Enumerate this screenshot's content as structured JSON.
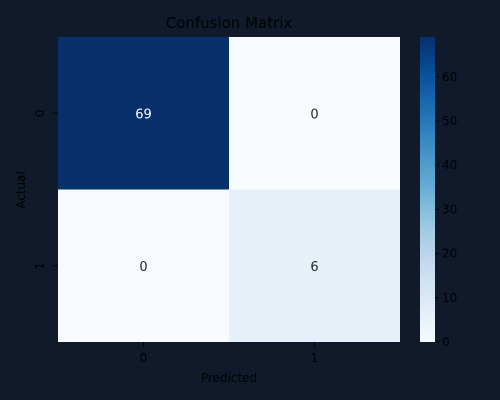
{
  "chart_data": {
    "type": "heatmap",
    "title": "Confusion Matrix",
    "xlabel": "Predicted",
    "ylabel": "Actual",
    "x_categories": [
      "0",
      "1"
    ],
    "y_categories": [
      "0",
      "1"
    ],
    "matrix": [
      [
        69,
        0
      ],
      [
        0,
        6
      ]
    ],
    "cell_labels": [
      [
        "69",
        "0"
      ],
      [
        "0",
        "6"
      ]
    ],
    "colorbar": {
      "min": 0,
      "max": 69,
      "ticks": [
        0,
        10,
        20,
        30,
        40,
        50,
        60
      ],
      "tick_labels": [
        "0",
        "10",
        "20",
        "30",
        "40",
        "50",
        "60"
      ],
      "colormap": "Blues"
    },
    "colors": {
      "background": "#101a2b",
      "text": "#000000",
      "low": "#f7fbff",
      "high": "#08306b"
    }
  }
}
